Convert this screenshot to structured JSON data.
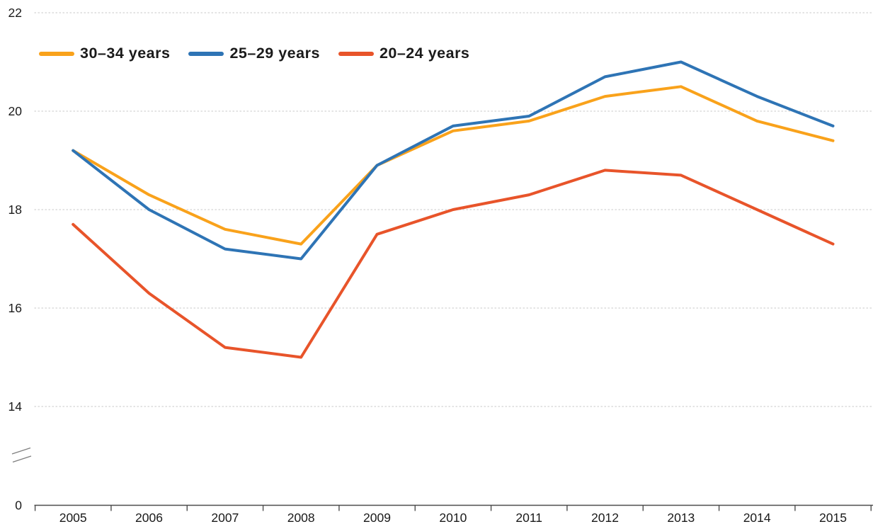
{
  "chart_data": {
    "type": "line",
    "title": "",
    "x": [
      2005,
      2006,
      2007,
      2008,
      2009,
      2010,
      2011,
      2012,
      2013,
      2014,
      2015
    ],
    "series": [
      {
        "name": "30–34 years",
        "color": "#F9A21B",
        "values": [
          19.2,
          18.3,
          17.6,
          17.3,
          18.9,
          19.6,
          19.8,
          20.3,
          20.5,
          19.8,
          19.4
        ]
      },
      {
        "name": "25–29 years",
        "color": "#2E74B5",
        "values": [
          19.2,
          18.0,
          17.2,
          17.0,
          18.9,
          19.7,
          19.9,
          20.7,
          21.0,
          20.3,
          19.7
        ]
      },
      {
        "name": "20–24 years",
        "color": "#E8542A",
        "values": [
          17.7,
          16.3,
          15.2,
          15.0,
          17.5,
          18.0,
          18.3,
          18.8,
          18.7,
          18.0,
          17.3
        ]
      }
    ],
    "xlabel": "",
    "ylabel": "",
    "y_axis": {
      "tick_labels": [
        "22",
        "20",
        "18",
        "16",
        "14",
        "0"
      ],
      "tick_values": [
        22,
        20,
        18,
        16,
        14,
        0
      ],
      "axis_break": true,
      "break_between": [
        0,
        14
      ]
    },
    "x_axis": {
      "tick_labels": [
        "2005",
        "2006",
        "2007",
        "2008",
        "2009",
        "2010",
        "2011",
        "2012",
        "2013",
        "2014",
        "2015"
      ]
    },
    "grid": "horizontal-dashed",
    "legend_position": "top-left"
  },
  "legend": {
    "items": [
      {
        "label": "30–34 years",
        "color": "#F9A21B"
      },
      {
        "label": "25–29 years",
        "color": "#2E74B5"
      },
      {
        "label": "20–24 years",
        "color": "#E8542A"
      }
    ]
  },
  "colors": {
    "gridline": "#c8c8c8",
    "axis_line": "#4d4d4d",
    "tick_text": "#1a1a1a",
    "background": "#ffffff"
  }
}
